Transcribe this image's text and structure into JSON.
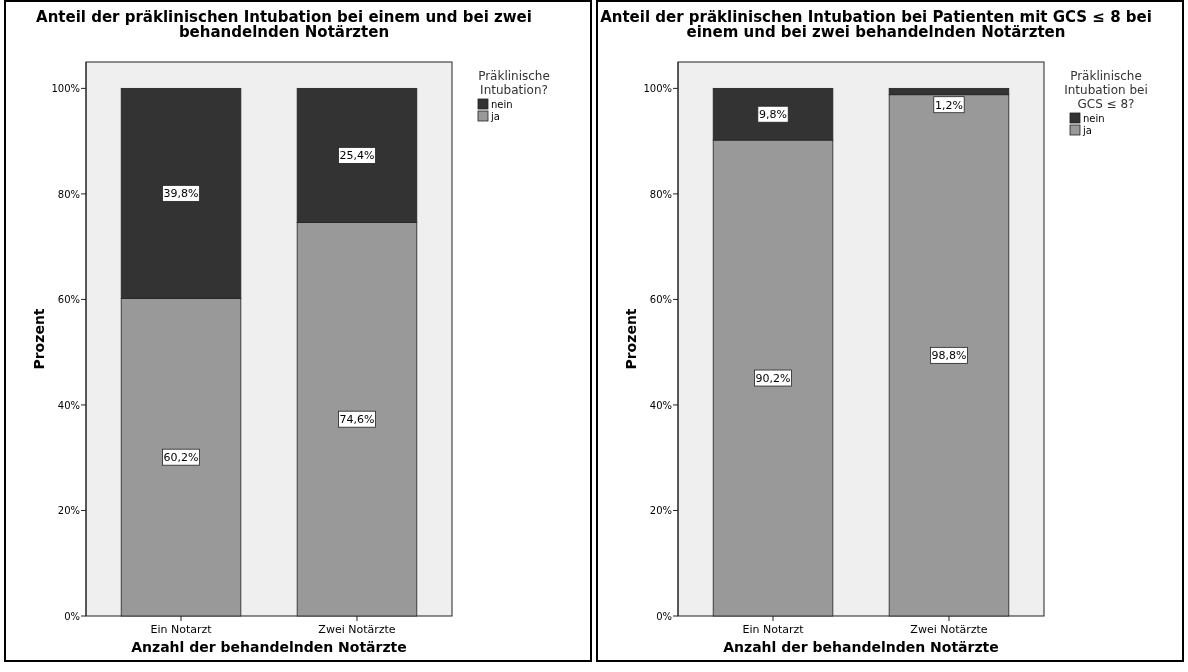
{
  "chart_data": [
    {
      "type": "bar",
      "title": "Anteil der präklinischen Intubation bei einem und bei zwei behandelnden Notärzten",
      "xlabel": "Anzahl der behandelnden Notärzte",
      "ylabel": "Prozent",
      "legend_title": "Präklinische Intubation?",
      "categories": [
        "Ein Notarzt",
        "Zwei Notärzte"
      ],
      "stacked": true,
      "ylim": [
        0,
        105
      ],
      "yticks": [
        {
          "value": 0,
          "label": "0%"
        },
        {
          "value": 20,
          "label": "20%"
        },
        {
          "value": 40,
          "label": "40%"
        },
        {
          "value": 60,
          "label": "60%"
        },
        {
          "value": 80,
          "label": "80%"
        },
        {
          "value": 100,
          "label": "100%"
        }
      ],
      "grid": false,
      "legend": "top right",
      "series": [
        {
          "name": "ja",
          "color": "#999999",
          "values": [
            60.2,
            74.6
          ],
          "value_labels": [
            "60,2%",
            "74,6%"
          ]
        },
        {
          "name": "nein",
          "color": "#333333",
          "values": [
            39.8,
            25.4
          ],
          "value_labels": [
            "39,8%",
            "25,4%"
          ]
        }
      ]
    },
    {
      "type": "bar",
      "title": "Anteil der präklinischen Intubation bei Patienten mit GCS ≤ 8 bei einem und bei zwei behandelnden Notärzten",
      "xlabel": "Anzahl der behandelnden Notärzte",
      "ylabel": "Prozent",
      "legend_title": "Präklinische Intubation bei GCS ≤ 8?",
      "categories": [
        "Ein Notarzt",
        "Zwei Notärzte"
      ],
      "stacked": true,
      "ylim": [
        0,
        105
      ],
      "yticks": [
        {
          "value": 0,
          "label": "0%"
        },
        {
          "value": 20,
          "label": "20%"
        },
        {
          "value": 40,
          "label": "40%"
        },
        {
          "value": 60,
          "label": "60%"
        },
        {
          "value": 80,
          "label": "80%"
        },
        {
          "value": 100,
          "label": "100%"
        }
      ],
      "grid": false,
      "legend": "top right",
      "series": [
        {
          "name": "ja",
          "color": "#999999",
          "values": [
            90.2,
            98.8
          ],
          "value_labels": [
            "90,2%",
            "98,8%"
          ]
        },
        {
          "name": "nein",
          "color": "#333333",
          "values": [
            9.8,
            1.2
          ],
          "value_labels": [
            "9,8%",
            "1,2%"
          ]
        }
      ]
    }
  ]
}
